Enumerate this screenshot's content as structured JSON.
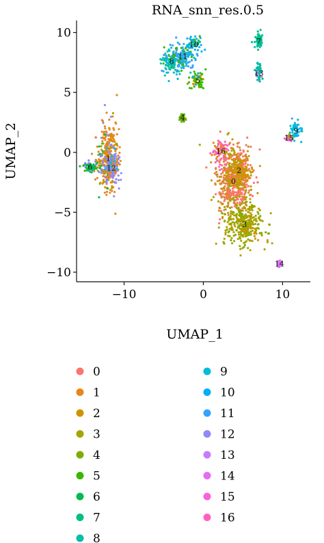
{
  "chart_data": {
    "type": "scatter",
    "title": "RNA_snn_res.0.5",
    "xlabel": "UMAP_1",
    "ylabel": "UMAP_2",
    "xlim": [
      -16,
      13.5
    ],
    "ylim": [
      -10.8,
      11
    ],
    "xticks": [
      -10,
      0,
      10
    ],
    "xtick_labels": [
      "−10",
      "0",
      "10"
    ],
    "yticks": [
      -10,
      -5,
      0,
      5,
      10
    ],
    "ytick_labels": [
      "−10",
      "−5",
      "0",
      "5",
      "10"
    ],
    "grid": false,
    "legend_position": "bottom",
    "legend_title": "",
    "series": [
      {
        "name": "0",
        "color": "#F8766D"
      },
      {
        "name": "1",
        "color": "#E7861B"
      },
      {
        "name": "2",
        "color": "#D09200"
      },
      {
        "name": "3",
        "color": "#A3A500"
      },
      {
        "name": "4",
        "color": "#7CAE00"
      },
      {
        "name": "5",
        "color": "#39B600"
      },
      {
        "name": "6",
        "color": "#00BB4E"
      },
      {
        "name": "7",
        "color": "#00BF7D"
      },
      {
        "name": "8",
        "color": "#00BFAB"
      },
      {
        "name": "9",
        "color": "#00BCD8"
      },
      {
        "name": "10",
        "color": "#00B0F6"
      },
      {
        "name": "11",
        "color": "#35A2FF"
      },
      {
        "name": "12",
        "color": "#8F8AF5"
      },
      {
        "name": "13",
        "color": "#C77CFF"
      },
      {
        "name": "14",
        "color": "#E76BF3"
      },
      {
        "name": "15",
        "color": "#FA62DB"
      },
      {
        "name": "16",
        "color": "#FF62BC"
      }
    ],
    "clusters": [
      {
        "label": "0",
        "x": 3.8,
        "y": -2.4,
        "spread": [
          2.0,
          2.5
        ],
        "mix": [
          "0",
          "2",
          "3"
        ]
      },
      {
        "label": "1",
        "x": -12.0,
        "y": -0.5,
        "spread": [
          1.2,
          2.8
        ],
        "mix": [
          "1",
          "2",
          "12",
          "6",
          "3"
        ]
      },
      {
        "label": "2",
        "x": 4.5,
        "y": -1.5,
        "spread": [
          1.5,
          1.5
        ],
        "mix": [
          "2",
          "0",
          "3"
        ]
      },
      {
        "label": "3",
        "x": 5.2,
        "y": -6.0,
        "spread": [
          2.2,
          1.6
        ],
        "mix": [
          "3",
          "2",
          "4"
        ]
      },
      {
        "label": "4",
        "x": -2.6,
        "y": 2.9,
        "spread": [
          0.3,
          0.3
        ],
        "mix": [
          "4",
          "5"
        ]
      },
      {
        "label": "5",
        "x": -0.7,
        "y": 6.0,
        "spread": [
          1.0,
          0.6
        ],
        "mix": [
          "5",
          "2",
          "4",
          "10"
        ]
      },
      {
        "label": "6",
        "x": -14.3,
        "y": -1.2,
        "spread": [
          0.8,
          0.4
        ],
        "mix": [
          "6",
          "5",
          "12"
        ]
      },
      {
        "label": "7",
        "x": 7.0,
        "y": 9.3,
        "spread": [
          0.5,
          0.6
        ],
        "mix": [
          "7",
          "8"
        ]
      },
      {
        "label": "8",
        "x": -4.0,
        "y": 7.6,
        "spread": [
          1.2,
          1.0
        ],
        "mix": [
          "8",
          "9",
          "11",
          "5"
        ]
      },
      {
        "label": "9",
        "x": 11.7,
        "y": 1.8,
        "spread": [
          0.6,
          0.6
        ],
        "mix": [
          "9",
          "11",
          "10"
        ]
      },
      {
        "label": "10",
        "x": -1.2,
        "y": 9.0,
        "spread": [
          1.0,
          0.6
        ],
        "mix": [
          "10",
          "9",
          "5"
        ]
      },
      {
        "label": "11",
        "x": -2.6,
        "y": 8.0,
        "spread": [
          1.4,
          1.0
        ],
        "mix": [
          "11",
          "8",
          "9",
          "5"
        ]
      },
      {
        "label": "12",
        "x": -11.6,
        "y": -1.3,
        "spread": [
          1.0,
          1.4
        ],
        "mix": [
          "12",
          "1",
          "9"
        ]
      },
      {
        "label": "13",
        "x": 7.0,
        "y": 6.6,
        "spread": [
          0.3,
          0.7
        ],
        "mix": [
          "8",
          "7",
          "13"
        ]
      },
      {
        "label": "14",
        "x": 9.6,
        "y": -9.3,
        "spread": [
          0.2,
          0.2
        ],
        "mix": [
          "14",
          "13"
        ]
      },
      {
        "label": "15",
        "x": 10.8,
        "y": 1.2,
        "spread": [
          0.3,
          0.2
        ],
        "mix": [
          "15",
          "3"
        ]
      },
      {
        "label": "16",
        "x": 2.2,
        "y": 0.1,
        "spread": [
          1.0,
          0.8
        ],
        "mix": [
          "16",
          "2",
          "1"
        ]
      }
    ]
  }
}
